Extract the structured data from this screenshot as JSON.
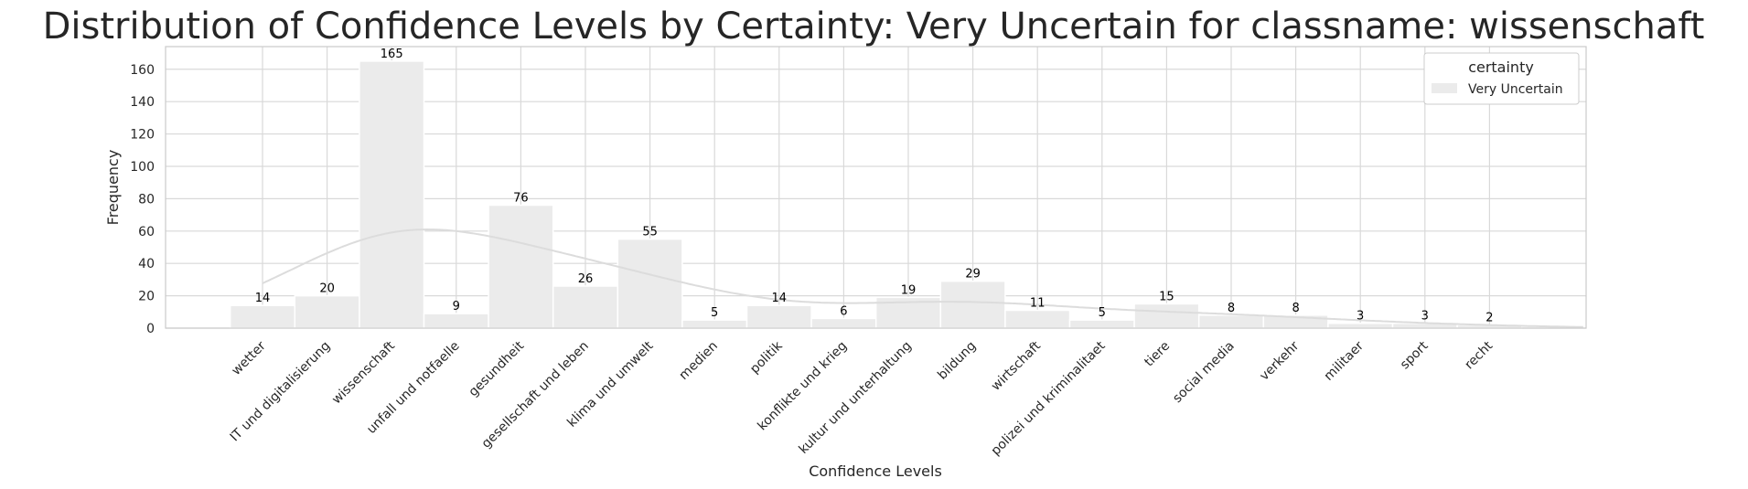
{
  "chart_data": {
    "type": "bar",
    "title": "Distribution of Confidence Levels by Certainty: Very Uncertain for classname: wissenschaft",
    "xlabel": "Confidence Levels",
    "ylabel": "Frequency",
    "ylim": [
      0,
      174
    ],
    "yticks": [
      0,
      20,
      40,
      60,
      80,
      100,
      120,
      140,
      160
    ],
    "grid": true,
    "categories": [
      "wetter",
      "IT und digitalisierung",
      "wissenschaft",
      "unfall und notfaelle",
      "gesundheit",
      "gesellschaft und leben",
      "klima und umwelt",
      "medien",
      "politik",
      "konflikte und krieg",
      "kultur und unterhaltung",
      "bildung",
      "wirtschaft",
      "polizei und kriminalitaet",
      "tiere",
      "social media",
      "verkehr",
      "militaer",
      "sport",
      "recht"
    ],
    "series": [
      {
        "name": "Very Uncertain",
        "values": [
          14,
          20,
          165,
          9,
          76,
          26,
          55,
          5,
          14,
          6,
          19,
          29,
          11,
          5,
          15,
          8,
          8,
          3,
          3,
          2
        ],
        "color": "#ebebeb",
        "kde_color": "#dcdcdc"
      }
    ],
    "legend": {
      "title": "certainty",
      "placement": "top-right"
    }
  }
}
